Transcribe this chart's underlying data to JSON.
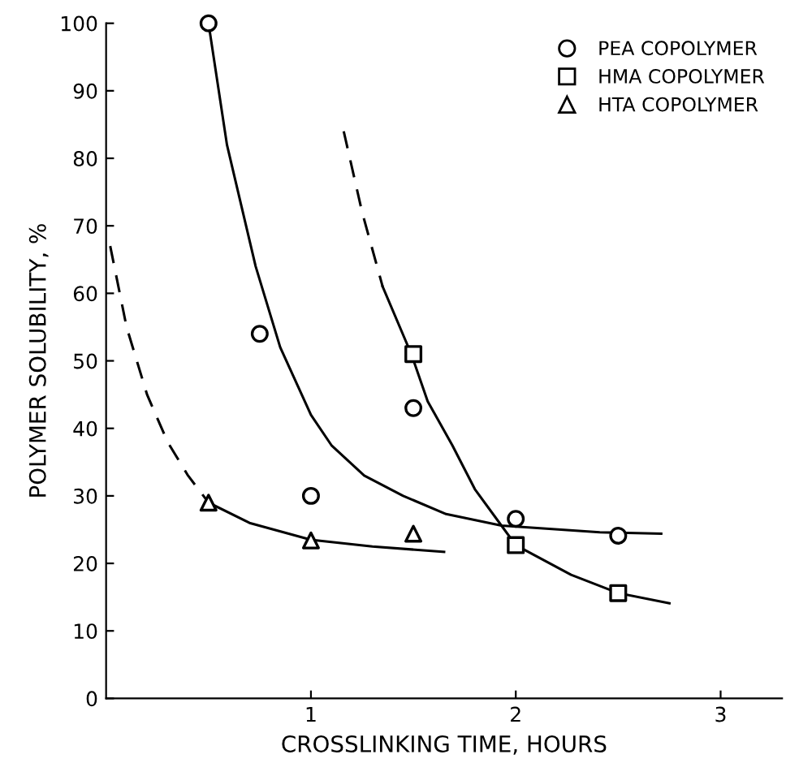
{
  "chart_data": {
    "type": "scatter",
    "xlabel": "CROSSLINKING TIME, HOURS",
    "ylabel": "POLYMER SOLUBILITY, %",
    "xlim": [
      0,
      3.3
    ],
    "xticks": [
      1,
      2,
      3
    ],
    "ylim": [
      0,
      100
    ],
    "yticks": [
      0,
      10,
      20,
      30,
      40,
      50,
      60,
      70,
      80,
      90,
      100
    ],
    "grid": false,
    "legend": "top right",
    "series": [
      {
        "name": "PEA COPOLYMER",
        "marker": "circle",
        "color": "#000000",
        "x": [
          0.5,
          0.75,
          1.0,
          1.5,
          2.0,
          2.5
        ],
        "values": [
          100,
          54,
          30,
          43,
          26.6,
          24.1
        ]
      },
      {
        "name": "HMA COPOLYMER",
        "marker": "square",
        "color": "#000000",
        "x": [
          1.5,
          2.0,
          2.5
        ],
        "values": [
          51,
          22.7,
          15.6
        ]
      },
      {
        "name": "HTA COPOLYMER",
        "marker": "triangle",
        "color": "#000000",
        "x": [
          0.5,
          1.0,
          1.5
        ],
        "values": [
          29,
          23.4,
          24.4
        ]
      },
      {
        "type": "line",
        "line_style": "solid",
        "color": "#000000",
        "x": [
          0.5,
          0.59,
          0.73,
          0.85,
          1.0,
          1.1,
          1.26,
          1.45,
          1.66,
          1.93,
          2.41,
          2.71
        ],
        "values": [
          100,
          82,
          64,
          52,
          42,
          37.5,
          33,
          30,
          27.3,
          25.6,
          24.6,
          24.4
        ]
      },
      {
        "type": "line",
        "line_style": "dashed",
        "color": "#000000",
        "x": [
          1.16,
          1.25,
          1.35
        ],
        "values": [
          84,
          72,
          61
        ]
      },
      {
        "type": "line",
        "line_style": "solid",
        "color": "#000000",
        "x": [
          1.35,
          1.49,
          1.57,
          1.69,
          1.8,
          1.93,
          2.0,
          2.27,
          2.5,
          2.75
        ],
        "values": [
          61,
          51,
          44,
          37.5,
          31,
          25.6,
          22.7,
          18.3,
          15.6,
          14.1
        ]
      },
      {
        "type": "line",
        "line_style": "dashed",
        "color": "#000000",
        "x": [
          0.02,
          0.1,
          0.2,
          0.3,
          0.4,
          0.5
        ],
        "values": [
          67,
          55,
          45,
          38,
          33,
          29
        ]
      },
      {
        "type": "line",
        "line_style": "solid",
        "color": "#000000",
        "x": [
          0.5,
          0.7,
          1.0,
          1.3,
          1.65
        ],
        "values": [
          29,
          26,
          23.5,
          22.5,
          21.7
        ]
      }
    ]
  }
}
